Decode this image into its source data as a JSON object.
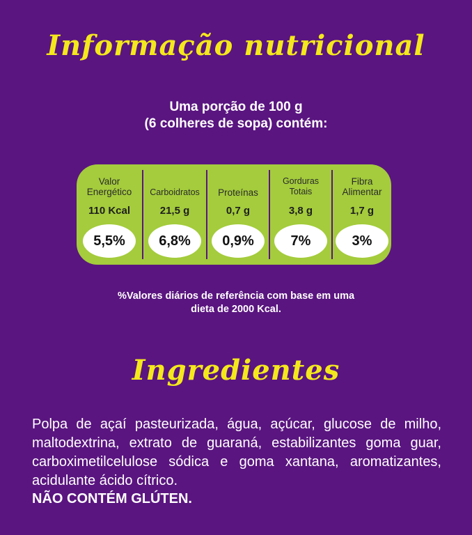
{
  "titles": {
    "nutrition": "Informação nutricional",
    "ingredients": "Ingredientes"
  },
  "serving": {
    "line1": "Uma porção de 100 g",
    "line2": "(6 colheres de sopa) contém:"
  },
  "nutrients": [
    {
      "label_line1": "Valor",
      "label_line2": "Energético",
      "value": "110 Kcal",
      "percent": "5,5%"
    },
    {
      "label_line1": "Carboidratos",
      "label_line2": "",
      "value": "21,5 g",
      "percent": "6,8%"
    },
    {
      "label_line1": "Proteínas",
      "label_line2": "",
      "value": "0,7 g",
      "percent": "0,9%"
    },
    {
      "label_line1": "Gorduras",
      "label_line2": "Totais",
      "value": "3,8 g",
      "percent": "7%"
    },
    {
      "label_line1": "Fibra",
      "label_line2": "Alimentar",
      "value": "1,7 g",
      "percent": "3%"
    }
  ],
  "footnote": {
    "line1": "%Valores diários de referência com base em uma",
    "line2": "dieta de 2000 Kcal."
  },
  "ingredients_text": "Polpa de açaí pasteurizada, água, açúcar, glucose de milho, maltodextrina, extrato de guaraná, estabilizantes goma guar, carboximetilcelulose sódica e goma xantana, aromatizantes, acidulante ácido cítrico.",
  "gluten_notice": "NÃO CONTÉM GLÚTEN.",
  "colors": {
    "background": "#5a1580",
    "title": "#f4e81c",
    "panel": "#a4cc3c"
  }
}
